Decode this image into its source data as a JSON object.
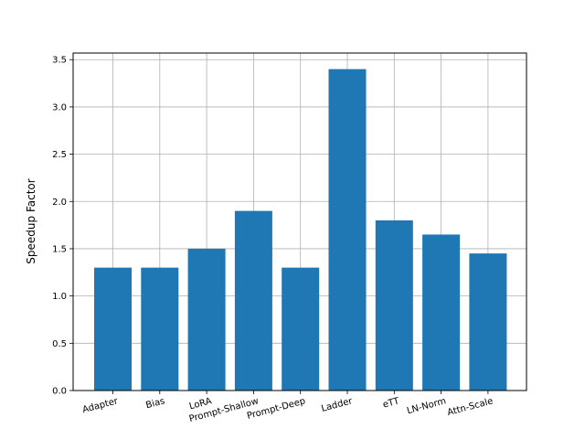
{
  "chart_data": {
    "type": "bar",
    "title": "",
    "xlabel": "",
    "ylabel": "Speedup Factor",
    "categories": [
      "Adapter",
      "Bias",
      "LoRA",
      "Prompt-Shallow",
      "Prompt-Deep",
      "Ladder",
      "eTT",
      "LN-Norm",
      "Attn-Scale"
    ],
    "values": [
      1.3,
      1.3,
      1.5,
      1.9,
      1.3,
      3.4,
      1.8,
      1.65,
      1.45
    ],
    "ylim": [
      0,
      3.57
    ],
    "yticks": [
      "0.0",
      "0.5",
      "1.0",
      "1.5",
      "2.0",
      "2.5",
      "3.0",
      "3.5"
    ],
    "grid": true,
    "bar_color": "#1f77b4",
    "grid_color": "#b0b0b0"
  }
}
